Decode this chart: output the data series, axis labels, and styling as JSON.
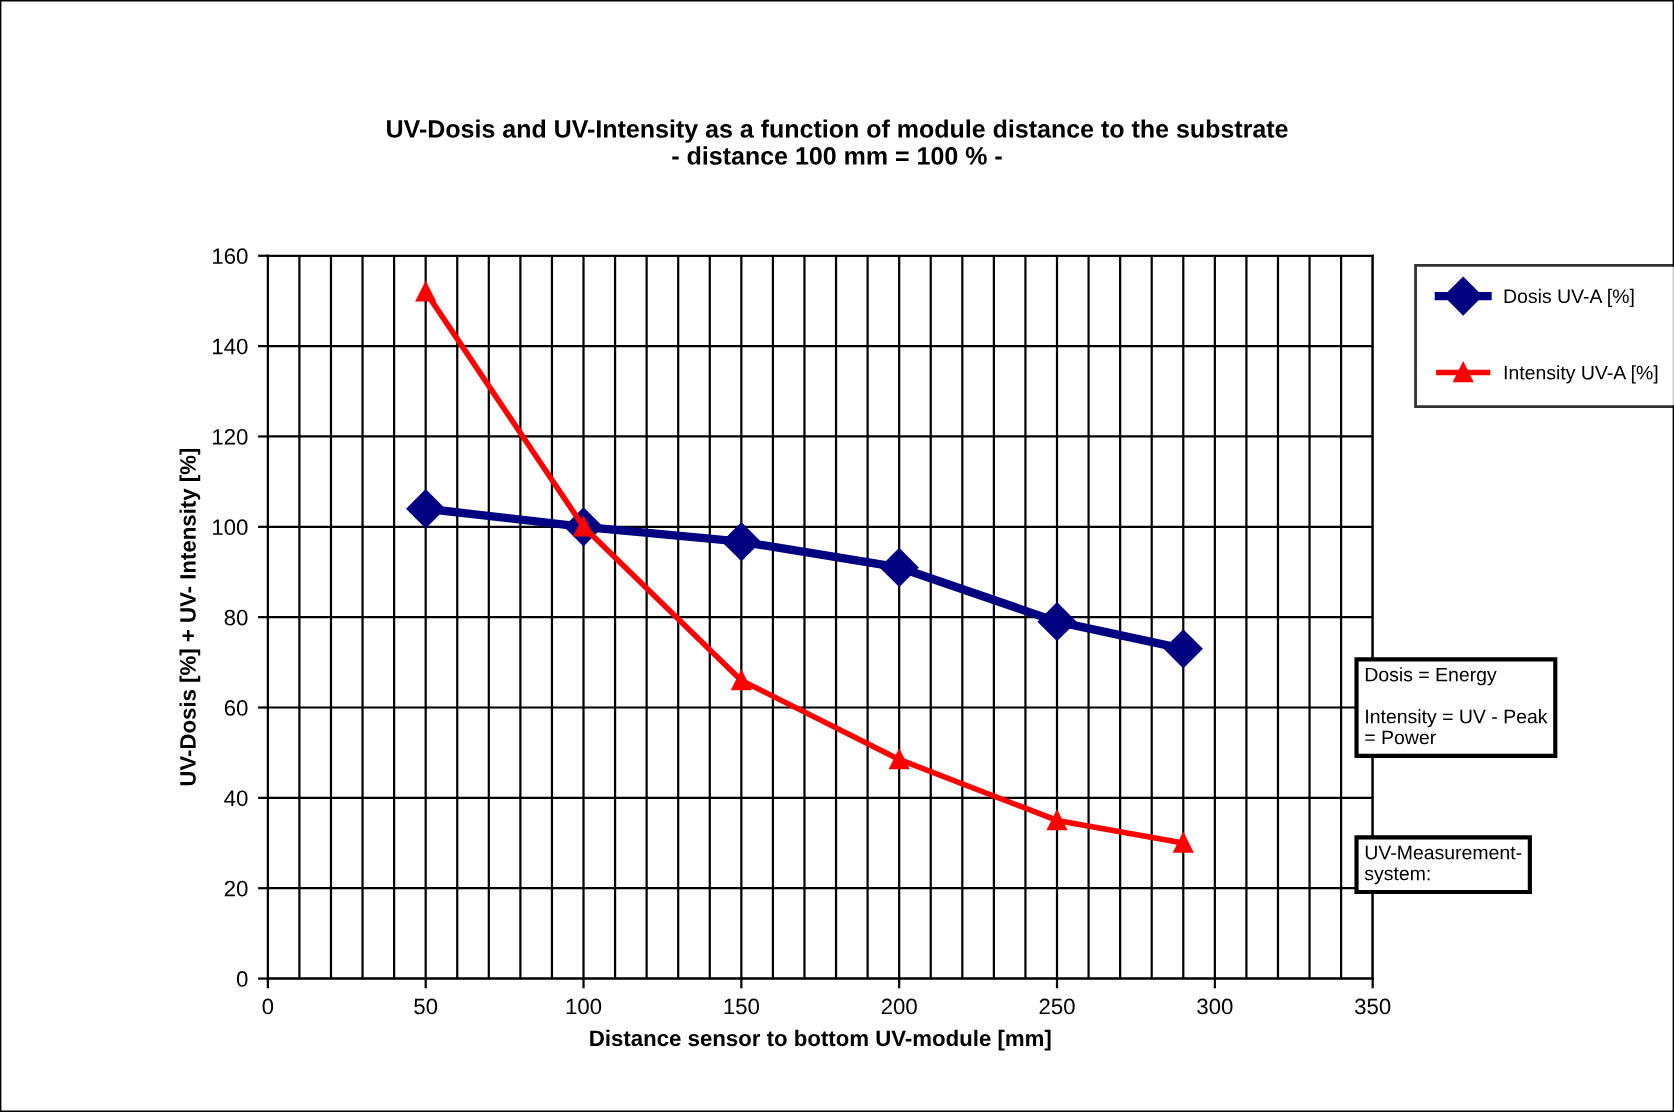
{
  "chart_data": {
    "type": "line",
    "title": "UV-Dosis and UV-Intensity as a function of module distance to the substrate\n- distance 100 mm = 100 % -",
    "xlabel": "Distance sensor to bottom UV-module [mm]",
    "ylabel": "UV-Dosis [%] + UV- Intensity [%]",
    "x": [
      50,
      100,
      150,
      200,
      250,
      290
    ],
    "series": [
      {
        "name": "Dosis UV-A [%]",
        "color": "#000080",
        "marker": "diamond",
        "values": [
          104,
          100,
          96.7,
          91,
          79,
          73
        ]
      },
      {
        "name": "Intensity UV-A [%]",
        "color": "#ff0000",
        "marker": "triangle",
        "values": [
          152,
          100,
          66,
          48.5,
          35,
          30
        ]
      }
    ],
    "xlim": [
      0,
      350
    ],
    "ylim": [
      0,
      160
    ],
    "xticks": [
      0,
      {
        "value": 10,
        "label": null
      },
      {
        "value": 20,
        "label": null
      },
      {
        "value": 30,
        "label": null
      },
      {
        "value": 40,
        "label": null
      },
      50,
      {
        "value": 60,
        "label": null
      },
      {
        "value": 70,
        "label": null
      },
      {
        "value": 80,
        "label": null
      },
      {
        "value": 90,
        "label": null
      },
      100,
      {
        "value": 110,
        "label": null
      },
      {
        "value": 120,
        "label": null
      },
      {
        "value": 130,
        "label": null
      },
      {
        "value": 140,
        "label": null
      },
      150,
      {
        "value": 160,
        "label": null
      },
      {
        "value": 170,
        "label": null
      },
      {
        "value": 180,
        "label": null
      },
      {
        "value": 190,
        "label": null
      },
      200,
      {
        "value": 210,
        "label": null
      },
      {
        "value": 220,
        "label": null
      },
      {
        "value": 230,
        "label": null
      },
      {
        "value": 240,
        "label": null
      },
      250,
      {
        "value": 260,
        "label": null
      },
      {
        "value": 270,
        "label": null
      },
      {
        "value": 280,
        "label": null
      },
      {
        "value": 290,
        "label": null
      },
      300,
      {
        "value": 310,
        "label": null
      },
      {
        "value": 320,
        "label": null
      },
      {
        "value": 330,
        "label": null
      },
      {
        "value": 340,
        "label": null
      },
      350
    ],
    "yticks": [
      0,
      20,
      40,
      60,
      80,
      100,
      120,
      140,
      160
    ],
    "grid": true,
    "legend": "right",
    "annotations": [
      "Dosis = Energy\n\nIntensity = UV - Peak\n= Power",
      "UV-Measurement-\nsystem:"
    ]
  }
}
